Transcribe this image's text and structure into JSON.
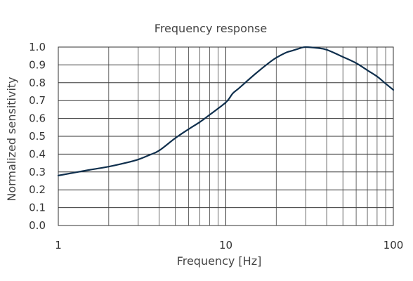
{
  "chart_data": {
    "type": "line",
    "title": "Frequency response",
    "xlabel": "Frequency [Hz]",
    "ylabel": "Normalized sensitivity",
    "xscale": "log",
    "xlim": [
      1,
      100
    ],
    "ylim": [
      0,
      1
    ],
    "x_ticks": [
      1,
      10,
      100
    ],
    "x_tick_labels": [
      "1",
      "10",
      "100"
    ],
    "y_ticks": [
      0.0,
      0.1,
      0.2,
      0.3,
      0.4,
      0.5,
      0.6,
      0.7,
      0.8,
      0.9,
      1.0
    ],
    "y_tick_labels": [
      "0.0",
      "0.1",
      "0.2",
      "0.3",
      "0.4",
      "0.5",
      "0.6",
      "0.7",
      "0.8",
      "0.9",
      "1.0"
    ],
    "grid": true,
    "series": [
      {
        "color": "#0f2f4d",
        "x": [
          1,
          1.5,
          2,
          2.5,
          3,
          3.5,
          4,
          5,
          6,
          7,
          8,
          10,
          11,
          12,
          15,
          18,
          20,
          23,
          25,
          28,
          30,
          35,
          40,
          50,
          60,
          70,
          80,
          90,
          100
        ],
        "y": [
          0.28,
          0.31,
          0.33,
          0.35,
          0.37,
          0.395,
          0.42,
          0.49,
          0.54,
          0.58,
          0.62,
          0.69,
          0.74,
          0.77,
          0.85,
          0.91,
          0.94,
          0.97,
          0.98,
          0.995,
          1.0,
          0.995,
          0.985,
          0.945,
          0.91,
          0.87,
          0.835,
          0.795,
          0.76
        ]
      }
    ]
  }
}
